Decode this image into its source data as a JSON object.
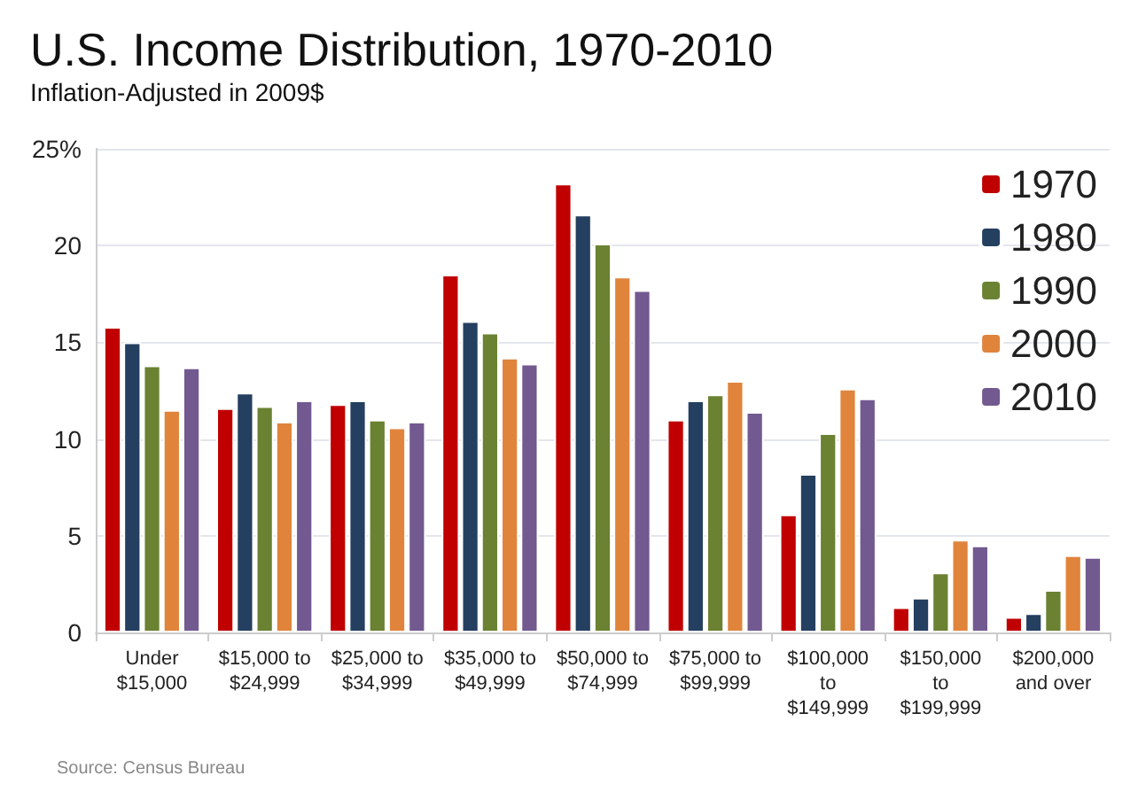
{
  "chart_data": {
    "type": "bar",
    "title": "U.S. Income Distribution, 1970-2010",
    "subtitle": "Inflation-Adjusted in 2009$",
    "categories": [
      "Under $15,000",
      "$15,000 to $24,999",
      "$25,000 to $34,999",
      "$35,000 to $49,999",
      "$50,000 to $74,999",
      "$75,000 to $99,999",
      "$100,000 to $149,999",
      "$150,000 to $199,999",
      "$200,000 and over"
    ],
    "series": [
      {
        "name": "1970",
        "color": "#c00000",
        "values": [
          15.8,
          11.6,
          11.8,
          18.5,
          23.2,
          11.0,
          6.1,
          1.3,
          0.8
        ]
      },
      {
        "name": "1980",
        "color": "#243f60",
        "values": [
          15.0,
          12.4,
          12.0,
          16.1,
          21.6,
          12.0,
          8.2,
          1.8,
          1.0
        ]
      },
      {
        "name": "1990",
        "color": "#6a8232",
        "values": [
          13.8,
          11.7,
          11.0,
          15.5,
          20.1,
          12.3,
          10.3,
          3.1,
          2.2
        ]
      },
      {
        "name": "2000",
        "color": "#e0843c",
        "values": [
          11.5,
          10.9,
          10.6,
          14.2,
          18.4,
          13.0,
          12.6,
          4.8,
          4.0
        ]
      },
      {
        "name": "2010",
        "color": "#725990",
        "values": [
          13.7,
          12.0,
          10.9,
          13.9,
          17.7,
          11.4,
          12.1,
          4.5,
          3.9
        ]
      }
    ],
    "ylim": [
      0,
      25
    ],
    "yticks": [
      0,
      5,
      10,
      15,
      20,
      {
        "value": 25,
        "label": "25%"
      }
    ],
    "grid": "y",
    "legend": "top right",
    "annotations": [
      "Source: Census Bureau"
    ]
  }
}
